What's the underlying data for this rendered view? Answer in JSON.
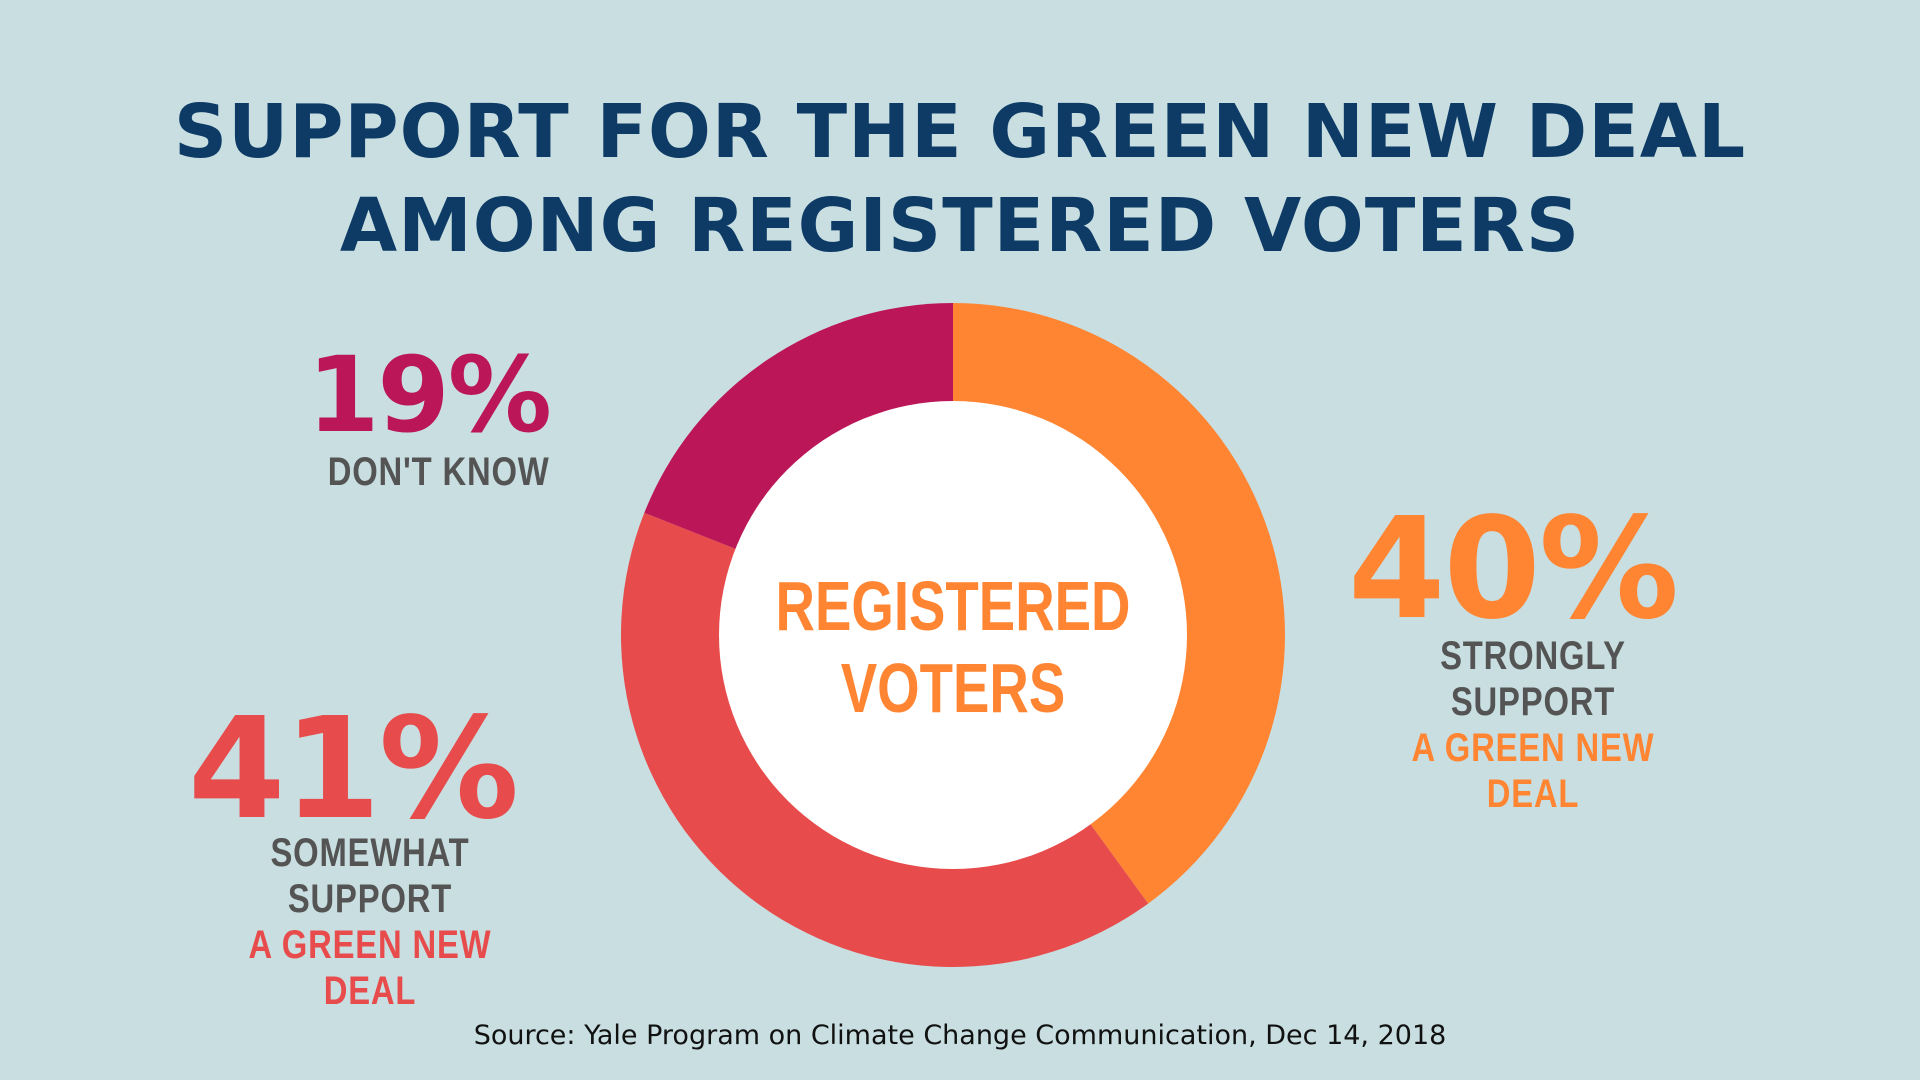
{
  "title_lines": [
    "SUPPORT FOR THE GREEN NEW DEAL",
    "AMONG REGISTERED VOTERS"
  ],
  "center_label_lines": [
    "REGISTERED",
    "VOTERS"
  ],
  "source": "Source: Yale Program on Climate Change Communication, Dec 14, 2018",
  "colors": {
    "background": "#c8dee0",
    "title": "#0d3b66",
    "strongly_support": "#ff8533",
    "somewhat_support": "#e84b4b",
    "dont_know": "#bb1658",
    "center": "#ffffff",
    "label_text": "#545454"
  },
  "labels": {
    "dont_know": {
      "pct": "19%",
      "line1": "DON'T KNOW"
    },
    "strongly_support": {
      "pct": "40%",
      "line1": "STRONGLY SUPPORT",
      "line2": "A GREEN  NEW DEAL"
    },
    "somewhat_support": {
      "pct": "41%",
      "line1": "SOMEWHAT SUPPORT",
      "line2": "A GREEN  NEW DEAL"
    }
  },
  "chart_data": {
    "type": "pie",
    "title": "SUPPORT FOR THE GREEN NEW DEAL AMONG REGISTERED VOTERS",
    "categories": [
      "STRONGLY SUPPORT A GREEN NEW DEAL",
      "SOMEWHAT SUPPORT A GREEN NEW DEAL",
      "DON'T KNOW"
    ],
    "values": [
      40,
      41,
      19
    ],
    "donut": true,
    "center_label": "REGISTERED VOTERS",
    "start": "top",
    "direction": "clockwise"
  }
}
